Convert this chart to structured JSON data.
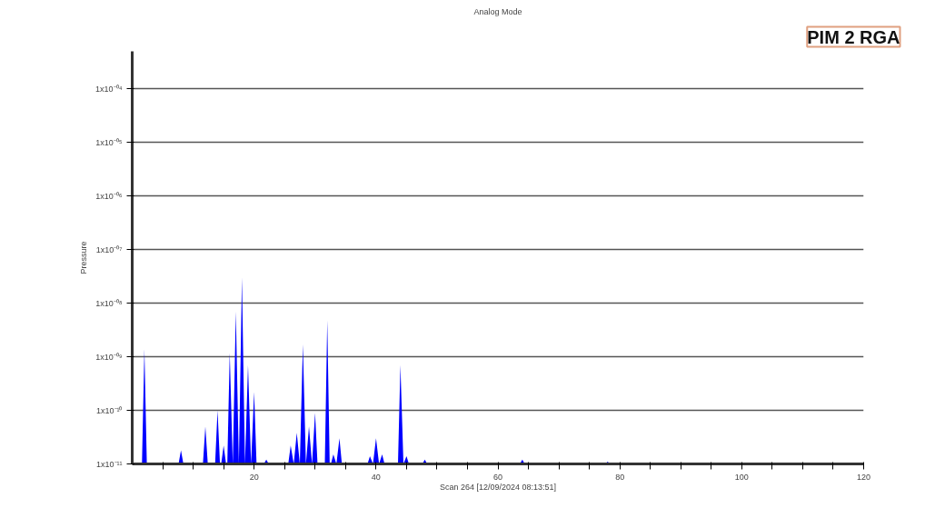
{
  "chart_data": {
    "type": "area",
    "title": "Analog Mode",
    "xlabel": "Scan 264 [12/09/2024 08:13:51]",
    "ylabel": "Pressure",
    "annotations": [
      "PIM 2 RGA"
    ],
    "log": true,
    "grid": "y",
    "xlim": [
      0,
      120
    ],
    "xticks": [
      {
        "value": 5,
        "label": null
      },
      {
        "value": 10,
        "label": null
      },
      {
        "value": 15,
        "label": null
      },
      20,
      {
        "value": 25,
        "label": null
      },
      {
        "value": 30,
        "label": null
      },
      {
        "value": 35,
        "label": null
      },
      40,
      {
        "value": 45,
        "label": null
      },
      {
        "value": 50,
        "label": null
      },
      {
        "value": 55,
        "label": null
      },
      60,
      {
        "value": 65,
        "label": null
      },
      {
        "value": 70,
        "label": null
      },
      {
        "value": 75,
        "label": null
      },
      80,
      {
        "value": 85,
        "label": null
      },
      {
        "value": 90,
        "label": null
      },
      {
        "value": 95,
        "label": null
      },
      100,
      {
        "value": 105,
        "label": null
      },
      {
        "value": 110,
        "label": null
      },
      {
        "value": 115,
        "label": null
      },
      120
    ],
    "ylim": [
      1e-11,
      0.0005
    ],
    "yticks": [
      {
        "value": 1e-11,
        "label": "1x10⁻¹¹"
      },
      {
        "value": 1e-10,
        "label": "1x10⁻¹⁰"
      },
      {
        "value": 1e-09,
        "label": "1x10⁻⁰⁹"
      },
      {
        "value": 1e-08,
        "label": "1x10⁻⁰⁸"
      },
      {
        "value": 1e-07,
        "label": "1x10⁻⁰⁷"
      },
      {
        "value": 1e-06,
        "label": "1x10⁻⁰⁶"
      },
      {
        "value": 1e-05,
        "label": "1x10⁻⁰⁵"
      },
      {
        "value": 0.0001,
        "label": "1x10⁻⁰⁴"
      }
    ],
    "series": [
      {
        "color": "#0000ff",
        "x": [
          1.6,
          2,
          2.4,
          7.6,
          8,
          8.4,
          11.6,
          12,
          12.4,
          13.6,
          14,
          14.4,
          14.6,
          15,
          15.4,
          15.6,
          16,
          16.5,
          17,
          17.5,
          18,
          18.5,
          19,
          19.5,
          20,
          20.4,
          21.6,
          22,
          22.4,
          25.6,
          26,
          26.5,
          27,
          27.5,
          28,
          28.5,
          29,
          29.5,
          30,
          30.4,
          31.6,
          32,
          32.4,
          32.6,
          33,
          33.5,
          34,
          34.4,
          38.6,
          39,
          39.5,
          40,
          40.5,
          41,
          41.4,
          43.6,
          44,
          44.5,
          45,
          45.4,
          47.6,
          48,
          48.4,
          63.6,
          64,
          64.4,
          77.6,
          78,
          78.4
        ],
        "values": [
          1e-11,
          1.4e-09,
          1e-11,
          1e-11,
          1.8e-11,
          1e-11,
          1e-11,
          5e-11,
          1e-11,
          1e-11,
          1e-10,
          1e-11,
          1e-11,
          2.2e-11,
          1e-11,
          1e-11,
          1.2e-09,
          1e-11,
          7e-09,
          1e-11,
          3e-08,
          1e-11,
          7e-10,
          1e-11,
          2.2e-10,
          1e-11,
          1e-11,
          1.2e-11,
          1e-11,
          1e-11,
          2.2e-11,
          1e-11,
          3.8e-11,
          1e-11,
          1.7e-09,
          1e-11,
          5e-11,
          1e-11,
          9e-11,
          1e-11,
          1e-11,
          4.8e-09,
          1e-11,
          1e-11,
          1.5e-11,
          1e-11,
          3e-11,
          1e-11,
          1e-11,
          1.4e-11,
          1e-11,
          3e-11,
          1e-11,
          1.5e-11,
          1e-11,
          1e-11,
          7e-10,
          1e-11,
          1.4e-11,
          1e-11,
          1e-11,
          1.2e-11,
          1e-11,
          1e-11,
          1.2e-11,
          1e-11,
          1e-11,
          1.1e-11,
          1e-11
        ]
      }
    ]
  }
}
